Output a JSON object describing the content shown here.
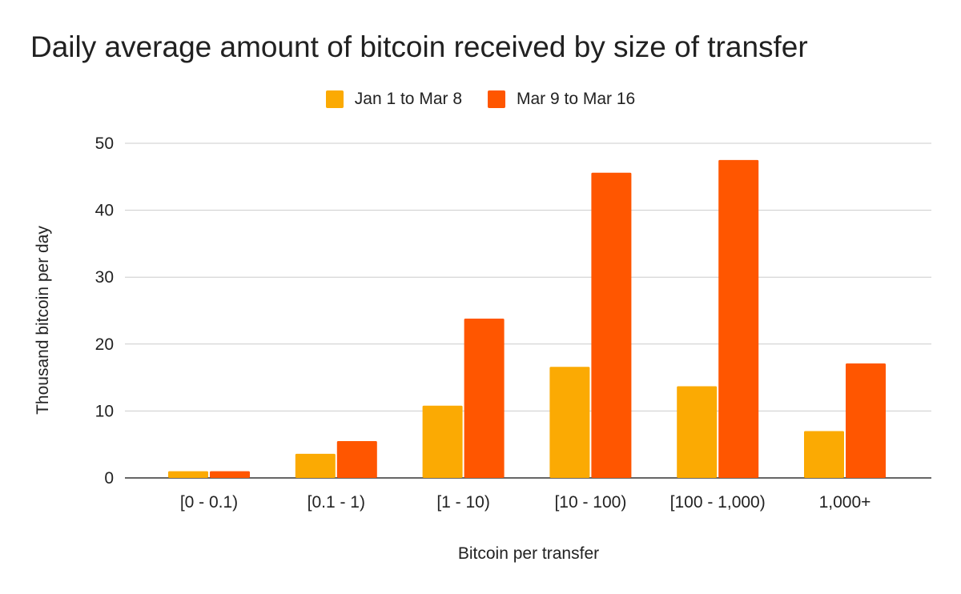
{
  "chart_data": {
    "type": "bar",
    "title": "Daily average amount of bitcoin received by size of transfer",
    "xlabel": "Bitcoin per transfer",
    "ylabel": "Thousand bitcoin per day",
    "ylim": [
      0,
      50
    ],
    "yticks": [
      "0",
      "10",
      "20",
      "30",
      "40",
      "50"
    ],
    "categories": [
      "[0 - 0.1)",
      "[0.1 - 1)",
      "[1 - 10)",
      "[10 - 100)",
      "[100 - 1,000)",
      "1,000+"
    ],
    "series": [
      {
        "name": "Jan 1 to Mar 8",
        "color": "#FBAA03",
        "values": [
          1.0,
          3.6,
          10.8,
          16.6,
          13.7,
          7.0
        ]
      },
      {
        "name": "Mar 9 to Mar 16",
        "color": "#FF5600",
        "values": [
          1.0,
          5.5,
          23.8,
          45.6,
          47.5,
          17.1
        ]
      }
    ],
    "grid": true,
    "legend_position": "top-center"
  }
}
